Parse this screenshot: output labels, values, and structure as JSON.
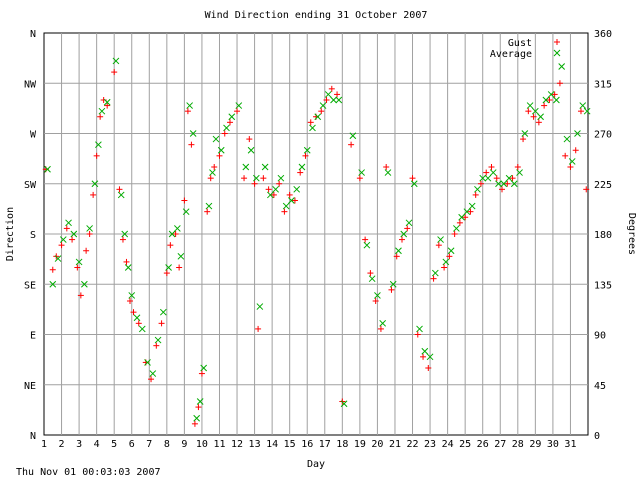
{
  "chart_data": {
    "type": "scatter",
    "title": "Wind Direction ending 31 October 2007",
    "xlabel": "Day",
    "ylabel_left": "Direction",
    "ylabel_right": "Degrees",
    "timestamp": "Thu Nov 01 00:03:03 2007",
    "xlim": [
      1,
      32
    ],
    "ylim": [
      0,
      360
    ],
    "grid": true,
    "legend_position": "top-right",
    "x_ticks": [
      "1",
      "2",
      "3",
      "4",
      "5",
      "6",
      "7",
      "8",
      "9",
      "10",
      "11",
      "12",
      "13",
      "14",
      "15",
      "16",
      "17",
      "18",
      "19",
      "20",
      "21",
      "22",
      "23",
      "24",
      "25",
      "26",
      "27",
      "28",
      "29",
      "30",
      "31"
    ],
    "y_ticks_left": [
      {
        "label": "N",
        "value": 0
      },
      {
        "label": "NE",
        "value": 45
      },
      {
        "label": "E",
        "value": 90
      },
      {
        "label": "SE",
        "value": 135
      },
      {
        "label": "S",
        "value": 180
      },
      {
        "label": "SW",
        "value": 225
      },
      {
        "label": "W",
        "value": 270
      },
      {
        "label": "NW",
        "value": 315
      },
      {
        "label": "N",
        "value": 360
      }
    ],
    "y_ticks_right": [
      "0",
      "45",
      "90",
      "135",
      "180",
      "225",
      "270",
      "315",
      "360"
    ],
    "series": [
      {
        "name": "Gust",
        "marker": "+",
        "color": "#ff0000",
        "points": [
          [
            1.1,
            238
          ],
          [
            1.5,
            148
          ],
          [
            1.7,
            160
          ],
          [
            2.0,
            170
          ],
          [
            2.3,
            185
          ],
          [
            2.6,
            175
          ],
          [
            2.9,
            150
          ],
          [
            3.1,
            125
          ],
          [
            3.4,
            165
          ],
          [
            3.6,
            180
          ],
          [
            3.8,
            215
          ],
          [
            4.0,
            250
          ],
          [
            4.2,
            285
          ],
          [
            4.4,
            300
          ],
          [
            4.6,
            295
          ],
          [
            5.0,
            325
          ],
          [
            5.3,
            220
          ],
          [
            5.5,
            175
          ],
          [
            5.7,
            155
          ],
          [
            5.9,
            120
          ],
          [
            6.1,
            110
          ],
          [
            6.4,
            100
          ],
          [
            6.8,
            65
          ],
          [
            7.1,
            50
          ],
          [
            7.4,
            80
          ],
          [
            7.7,
            100
          ],
          [
            8.0,
            145
          ],
          [
            8.2,
            170
          ],
          [
            8.5,
            180
          ],
          [
            8.7,
            150
          ],
          [
            9.0,
            210
          ],
          [
            9.2,
            290
          ],
          [
            9.4,
            260
          ],
          [
            9.6,
            10
          ],
          [
            9.8,
            25
          ],
          [
            10.0,
            55
          ],
          [
            10.3,
            200
          ],
          [
            10.5,
            230
          ],
          [
            10.7,
            240
          ],
          [
            11.0,
            250
          ],
          [
            11.3,
            270
          ],
          [
            11.6,
            280
          ],
          [
            12.0,
            290
          ],
          [
            12.4,
            230
          ],
          [
            12.7,
            265
          ],
          [
            13.0,
            225
          ],
          [
            13.2,
            95
          ],
          [
            13.5,
            230
          ],
          [
            13.8,
            220
          ],
          [
            14.1,
            215
          ],
          [
            14.4,
            225
          ],
          [
            14.7,
            200
          ],
          [
            15.0,
            215
          ],
          [
            15.3,
            210
          ],
          [
            15.6,
            235
          ],
          [
            15.9,
            250
          ],
          [
            16.2,
            280
          ],
          [
            16.5,
            285
          ],
          [
            16.8,
            290
          ],
          [
            17.1,
            300
          ],
          [
            17.4,
            310
          ],
          [
            17.7,
            305
          ],
          [
            18.0,
            30
          ],
          [
            18.5,
            260
          ],
          [
            19.0,
            230
          ],
          [
            19.3,
            175
          ],
          [
            19.6,
            145
          ],
          [
            19.9,
            120
          ],
          [
            20.2,
            95
          ],
          [
            20.5,
            240
          ],
          [
            20.8,
            130
          ],
          [
            21.1,
            160
          ],
          [
            21.4,
            175
          ],
          [
            21.7,
            185
          ],
          [
            22.0,
            230
          ],
          [
            22.3,
            90
          ],
          [
            22.6,
            70
          ],
          [
            22.9,
            60
          ],
          [
            23.2,
            140
          ],
          [
            23.5,
            170
          ],
          [
            23.8,
            150
          ],
          [
            24.1,
            160
          ],
          [
            24.4,
            180
          ],
          [
            24.7,
            190
          ],
          [
            25.0,
            195
          ],
          [
            25.3,
            200
          ],
          [
            25.6,
            215
          ],
          [
            25.9,
            225
          ],
          [
            26.2,
            235
          ],
          [
            26.5,
            240
          ],
          [
            26.8,
            230
          ],
          [
            27.1,
            220
          ],
          [
            27.4,
            225
          ],
          [
            27.7,
            230
          ],
          [
            28.0,
            240
          ],
          [
            28.3,
            265
          ],
          [
            28.6,
            290
          ],
          [
            28.9,
            285
          ],
          [
            29.2,
            280
          ],
          [
            29.5,
            295
          ],
          [
            29.8,
            300
          ],
          [
            30.1,
            305
          ],
          [
            30.4,
            315
          ],
          [
            30.7,
            250
          ],
          [
            31.0,
            240
          ],
          [
            31.3,
            255
          ],
          [
            31.6,
            290
          ],
          [
            31.9,
            220
          ]
        ]
      },
      {
        "name": "Average",
        "marker": "x",
        "color": "#00aa00",
        "points": [
          [
            1.2,
            238
          ],
          [
            1.5,
            135
          ],
          [
            1.8,
            158
          ],
          [
            2.1,
            175
          ],
          [
            2.4,
            190
          ],
          [
            2.7,
            180
          ],
          [
            3.0,
            155
          ],
          [
            3.3,
            135
          ],
          [
            3.6,
            185
          ],
          [
            3.9,
            225
          ],
          [
            4.1,
            260
          ],
          [
            4.3,
            290
          ],
          [
            4.6,
            298
          ],
          [
            5.1,
            335
          ],
          [
            5.4,
            215
          ],
          [
            5.6,
            180
          ],
          [
            5.8,
            150
          ],
          [
            6.0,
            125
          ],
          [
            6.3,
            105
          ],
          [
            6.6,
            95
          ],
          [
            6.9,
            65
          ],
          [
            7.2,
            55
          ],
          [
            7.5,
            85
          ],
          [
            7.8,
            110
          ],
          [
            8.1,
            150
          ],
          [
            8.3,
            180
          ],
          [
            8.6,
            185
          ],
          [
            8.8,
            160
          ],
          [
            9.1,
            200
          ],
          [
            9.3,
            295
          ],
          [
            9.5,
            270
          ],
          [
            9.7,
            15
          ],
          [
            9.9,
            30
          ],
          [
            10.1,
            60
          ],
          [
            10.4,
            205
          ],
          [
            10.6,
            235
          ],
          [
            10.8,
            265
          ],
          [
            11.1,
            255
          ],
          [
            11.4,
            275
          ],
          [
            11.7,
            285
          ],
          [
            12.1,
            295
          ],
          [
            12.5,
            240
          ],
          [
            12.8,
            255
          ],
          [
            13.1,
            230
          ],
          [
            13.3,
            115
          ],
          [
            13.6,
            240
          ],
          [
            13.9,
            215
          ],
          [
            14.2,
            220
          ],
          [
            14.5,
            230
          ],
          [
            14.8,
            205
          ],
          [
            15.1,
            210
          ],
          [
            15.4,
            220
          ],
          [
            15.7,
            240
          ],
          [
            16.0,
            255
          ],
          [
            16.3,
            275
          ],
          [
            16.6,
            285
          ],
          [
            16.9,
            295
          ],
          [
            17.2,
            305
          ],
          [
            17.5,
            300
          ],
          [
            17.8,
            300
          ],
          [
            18.1,
            28
          ],
          [
            18.6,
            268
          ],
          [
            19.1,
            235
          ],
          [
            19.4,
            170
          ],
          [
            19.7,
            140
          ],
          [
            20.0,
            125
          ],
          [
            20.3,
            100
          ],
          [
            20.6,
            235
          ],
          [
            20.9,
            135
          ],
          [
            21.2,
            165
          ],
          [
            21.5,
            180
          ],
          [
            21.8,
            190
          ],
          [
            22.1,
            225
          ],
          [
            22.4,
            95
          ],
          [
            22.7,
            75
          ],
          [
            23.0,
            70
          ],
          [
            23.3,
            145
          ],
          [
            23.6,
            175
          ],
          [
            23.9,
            155
          ],
          [
            24.2,
            165
          ],
          [
            24.5,
            185
          ],
          [
            24.8,
            195
          ],
          [
            25.1,
            200
          ],
          [
            25.4,
            205
          ],
          [
            25.7,
            220
          ],
          [
            26.0,
            230
          ],
          [
            26.3,
            230
          ],
          [
            26.6,
            235
          ],
          [
            26.9,
            225
          ],
          [
            27.2,
            225
          ],
          [
            27.5,
            230
          ],
          [
            27.8,
            225
          ],
          [
            28.1,
            235
          ],
          [
            28.4,
            270
          ],
          [
            28.7,
            295
          ],
          [
            29.0,
            290
          ],
          [
            29.3,
            285
          ],
          [
            29.6,
            300
          ],
          [
            29.9,
            305
          ],
          [
            30.2,
            300
          ],
          [
            30.5,
            330
          ],
          [
            30.8,
            265
          ],
          [
            31.1,
            245
          ],
          [
            31.4,
            270
          ],
          [
            31.7,
            295
          ],
          [
            31.95,
            290
          ]
        ]
      }
    ]
  }
}
